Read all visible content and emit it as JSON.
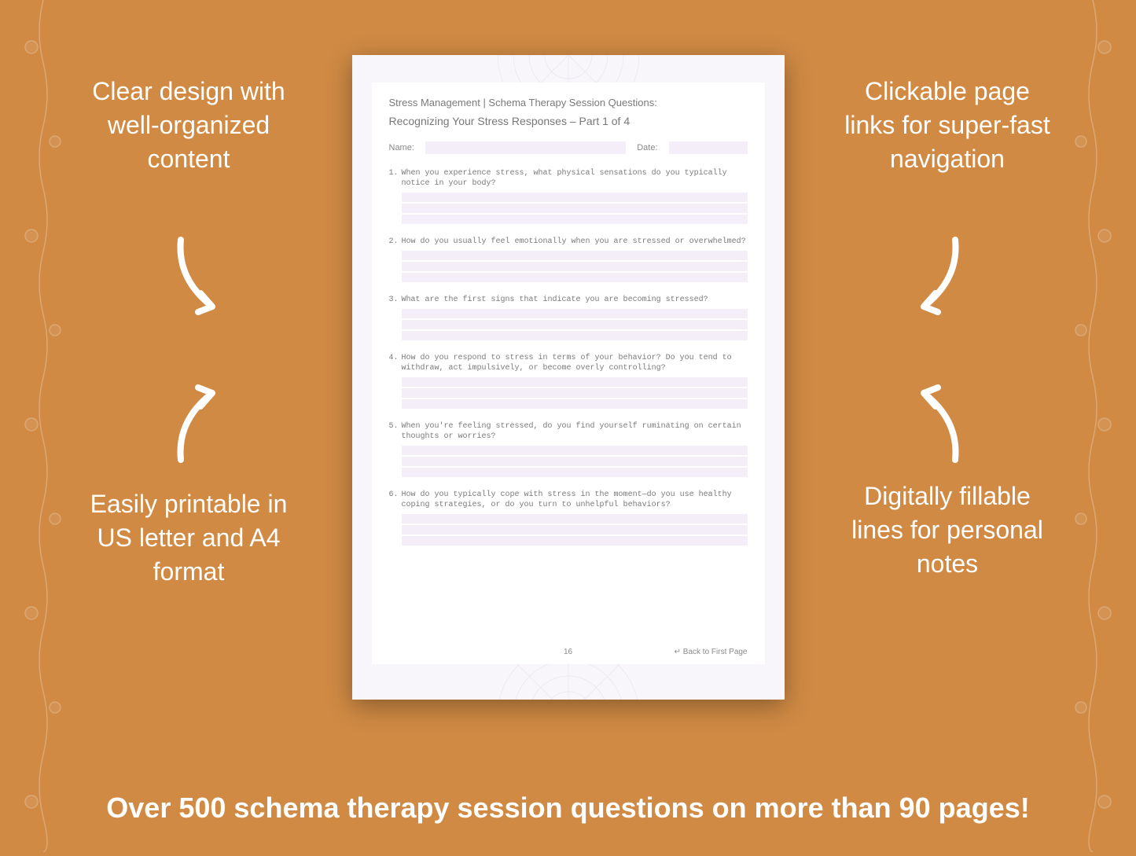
{
  "background_color": "#d08a44",
  "text_color": "#ffffff",
  "document_bg": "#f9f6fb",
  "inner_bg": "#ffffff",
  "field_bg": "#f4eef9",
  "doc_text_color": "#7a7a7a",
  "callouts": {
    "top_left": "Clear design with well-organized content",
    "top_right": "Clickable page links for super-fast navigation",
    "bottom_left": "Easily printable in US letter and A4 format",
    "bottom_right": "Digitally fillable lines for personal notes"
  },
  "bottom_banner": "Over 500 schema therapy session questions on more than 90 pages!",
  "document": {
    "title": "Stress Management | Schema Therapy Session Questions:",
    "subtitle": "Recognizing Your Stress Responses  – Part 1 of 4",
    "name_label": "Name:",
    "date_label": "Date:",
    "questions": [
      {
        "num": "1.",
        "text": "When you experience stress, what physical sensations do you typically notice in your body?",
        "lines": 3
      },
      {
        "num": "2.",
        "text": "How do you usually feel emotionally when you are stressed or overwhelmed?",
        "lines": 3
      },
      {
        "num": "3.",
        "text": "What are the first signs that indicate you are becoming stressed?",
        "lines": 3
      },
      {
        "num": "4.",
        "text": "How do you respond to stress in terms of your behavior? Do you tend to withdraw, act impulsively, or become overly controlling?",
        "lines": 3
      },
      {
        "num": "5.",
        "text": "When you're feeling stressed, do you find yourself ruminating on certain thoughts or worries?",
        "lines": 3
      },
      {
        "num": "6.",
        "text": "How do you typically cope with stress in the moment—do you use healthy coping strategies, or do you turn to unhelpful behaviors?",
        "lines": 3
      }
    ],
    "page_number": "16",
    "back_link": "↵ Back to First Page"
  }
}
